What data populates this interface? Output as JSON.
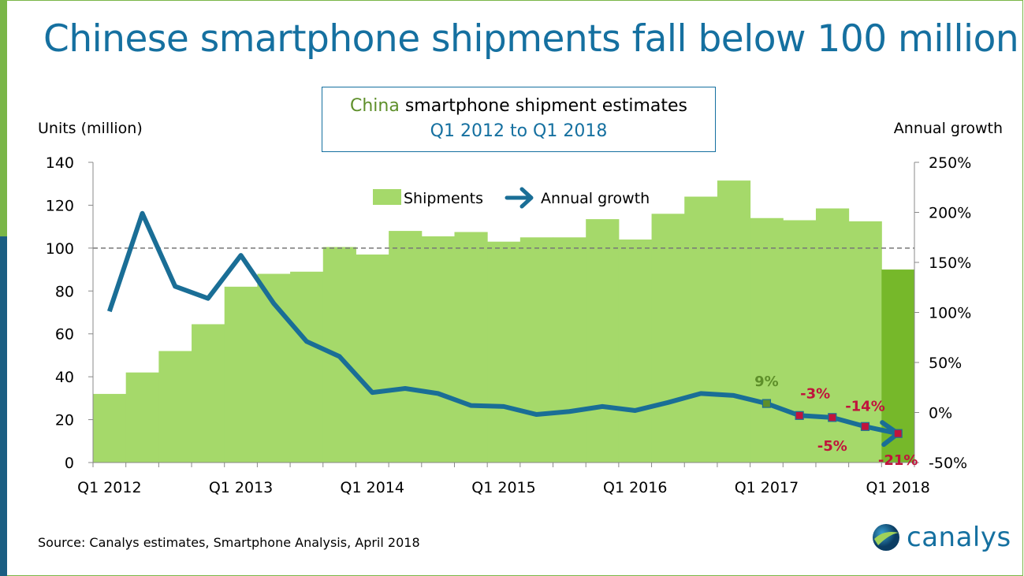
{
  "title": "Chinese smartphone shipments fall below 100 million",
  "box": {
    "line1_highlight": "China",
    "line1_rest": " smartphone shipment estimates",
    "line2": "Q1 2012 to Q1 2018"
  },
  "footer": {
    "source": "Source: Canalys estimates, Smartphone Analysis, April 2018",
    "logo": "canalys"
  },
  "colors": {
    "bar": "#a5d96a",
    "bar_highlight": "#76b82a",
    "line": "#1a6e96",
    "neg": "#c0143c",
    "pos": "#5e8f2a"
  },
  "chart_data": {
    "type": "bar+line",
    "left_axis": {
      "label": "Units (million)",
      "range": [
        0,
        140
      ],
      "ticks": [
        0,
        20,
        40,
        60,
        80,
        100,
        120,
        140
      ]
    },
    "right_axis": {
      "label": "Annual growth",
      "range": [
        -50,
        250
      ],
      "ticks": [
        "-50%",
        "0%",
        "50%",
        "100%",
        "150%",
        "200%",
        "250%"
      ],
      "tick_values": [
        -50,
        0,
        50,
        100,
        150,
        200,
        250
      ]
    },
    "x_tick_labels": [
      "Q1 2012",
      "Q1 2013",
      "Q1 2014",
      "Q1 2015",
      "Q1 2016",
      "Q1 2017",
      "Q1 2018"
    ],
    "categories": [
      "Q1 2012",
      "Q2 2012",
      "Q3 2012",
      "Q4 2012",
      "Q1 2013",
      "Q2 2013",
      "Q3 2013",
      "Q4 2013",
      "Q1 2014",
      "Q2 2014",
      "Q3 2014",
      "Q4 2014",
      "Q1 2015",
      "Q2 2015",
      "Q3 2015",
      "Q4 2015",
      "Q1 2016",
      "Q2 2016",
      "Q3 2016",
      "Q4 2016",
      "Q1 2017",
      "Q2 2017",
      "Q3 2017",
      "Q4 2017",
      "Q1 2018"
    ],
    "reference_line": 100,
    "legend": [
      "Shipments",
      "Annual growth"
    ],
    "series": [
      {
        "name": "Shipments",
        "axis": "left",
        "values": [
          32,
          42,
          52,
          64.5,
          82,
          88,
          89,
          100.5,
          97,
          108,
          105.5,
          107.5,
          103,
          105,
          105,
          113.5,
          104,
          116,
          124,
          131.5,
          114,
          113,
          118.5,
          112.5,
          90
        ]
      },
      {
        "name": "Annual growth",
        "axis": "right",
        "values": [
          101,
          199,
          126,
          114,
          157,
          109,
          71,
          56,
          20,
          24,
          19,
          7,
          6,
          -2,
          1,
          6,
          2,
          10,
          19,
          17,
          9,
          -3,
          -5,
          -14,
          -21
        ]
      }
    ],
    "data_labels": [
      {
        "index": 20,
        "text": "9%"
      },
      {
        "index": 21,
        "text": "-3%"
      },
      {
        "index": 22,
        "text": "-5%"
      },
      {
        "index": 23,
        "text": "-14%"
      },
      {
        "index": 24,
        "text": "-21%"
      }
    ]
  }
}
